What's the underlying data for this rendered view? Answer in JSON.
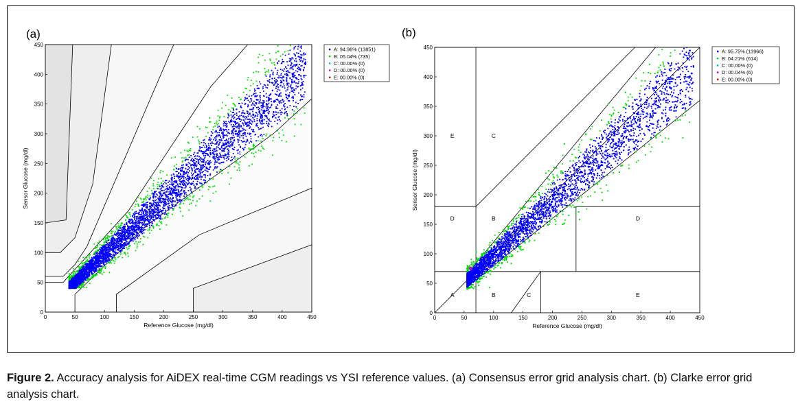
{
  "figure": {
    "label": "Figure 2.",
    "caption": "Accuracy analysis for AiDEX real-time CGM readings vs YSI reference values. (a) Consensus error grid analysis chart. (b) Clarke error grid analysis chart."
  },
  "colors": {
    "zone_a": "#0000ff",
    "zone_b": "#00dd00",
    "zone_c": "#00bbbb",
    "zone_d": "#cc00cc",
    "zone_e": "#dd0000",
    "region_light": "#f7f7f7",
    "region_mid": "#eeeeee",
    "region_dark": "#e3e3e3"
  },
  "chart_data": [
    {
      "panel_label": "(a)",
      "type": "scatter",
      "grid_type": "Consensus error grid",
      "xlabel": "Reference Glucose (mg/dl)",
      "ylabel": "Sensor Glucose (mg/dl)",
      "xlim": [
        0,
        450
      ],
      "ylim": [
        0,
        450
      ],
      "xticks": [
        0,
        50,
        100,
        150,
        200,
        250,
        300,
        350,
        400,
        450
      ],
      "yticks": [
        0,
        50,
        100,
        150,
        200,
        250,
        300,
        350,
        400,
        450
      ],
      "legend_position": "top-right outside",
      "legend": [
        {
          "zone": "A",
          "text": "A: 94.96% (13851)",
          "percent": 94.96,
          "count": 13851
        },
        {
          "zone": "B",
          "text": "B: 05.04% (735)",
          "percent": 5.04,
          "count": 735
        },
        {
          "zone": "C",
          "text": "C: 00.00% (0)",
          "percent": 0.0,
          "count": 0
        },
        {
          "zone": "D",
          "text": "D: 00.00% (0)",
          "percent": 0.0,
          "count": 0
        },
        {
          "zone": "E",
          "text": "E: 00.00% (0)",
          "percent": 0.0,
          "count": 0
        }
      ],
      "zone_boundaries": [
        [
          [
            0,
            150
          ],
          [
            35,
            155
          ],
          [
            50,
            550
          ]
        ],
        [
          [
            0,
            100
          ],
          [
            25,
            100
          ],
          [
            50,
            125
          ],
          [
            80,
            215
          ],
          [
            125,
            550
          ]
        ],
        [
          [
            0,
            60
          ],
          [
            30,
            60
          ],
          [
            50,
            80
          ],
          [
            70,
            110
          ],
          [
            260,
            550
          ]
        ],
        [
          [
            0,
            50
          ],
          [
            30,
            50
          ],
          [
            140,
            170
          ],
          [
            280,
            380
          ],
          [
            430,
            550
          ]
        ],
        [
          [
            50,
            0
          ],
          [
            50,
            30
          ],
          [
            170,
            145
          ],
          [
            385,
            300
          ],
          [
            550,
            450
          ]
        ],
        [
          [
            120,
            0
          ],
          [
            120,
            30
          ],
          [
            260,
            130
          ],
          [
            550,
            250
          ]
        ],
        [
          [
            250,
            0
          ],
          [
            250,
            40
          ],
          [
            550,
            150
          ]
        ]
      ],
      "scatter_trend": {
        "x_range": [
          40,
          440
        ],
        "slope": 0.93,
        "intercept": 4
      }
    },
    {
      "panel_label": "(b)",
      "type": "scatter",
      "grid_type": "Clarke error grid",
      "xlabel": "Reference Glucose (mg/dl)",
      "ylabel": "Sensor Glucose (mg/dl)",
      "xlim": [
        0,
        450
      ],
      "ylim": [
        0,
        450
      ],
      "xticks": [
        0,
        50,
        100,
        150,
        200,
        250,
        300,
        350,
        400,
        450
      ],
      "yticks": [
        0,
        50,
        100,
        150,
        200,
        250,
        300,
        350,
        400,
        450
      ],
      "legend_position": "top-right outside",
      "legend": [
        {
          "zone": "A",
          "text": "A: 95.75% (13966)",
          "percent": 95.75,
          "count": 13966
        },
        {
          "zone": "B",
          "text": "B: 04.21% (614)",
          "percent": 4.21,
          "count": 614
        },
        {
          "zone": "C",
          "text": "C: 00.00% (0)",
          "percent": 0.0,
          "count": 0
        },
        {
          "zone": "D",
          "text": "D: 00.04% (6)",
          "percent": 0.04,
          "count": 6
        },
        {
          "zone": "E",
          "text": "E: 00.00% (0)",
          "percent": 0.0,
          "count": 0
        }
      ],
      "zone_labels": [
        {
          "text": "E",
          "x": 30,
          "y": 300
        },
        {
          "text": "C",
          "x": 100,
          "y": 300
        },
        {
          "text": "D",
          "x": 30,
          "y": 160
        },
        {
          "text": "B",
          "x": 100,
          "y": 160
        },
        {
          "text": "D",
          "x": 345,
          "y": 160
        },
        {
          "text": "A",
          "x": 30,
          "y": 30
        },
        {
          "text": "B",
          "x": 100,
          "y": 30
        },
        {
          "text": "C",
          "x": 160,
          "y": 30
        },
        {
          "text": "E",
          "x": 345,
          "y": 30
        }
      ],
      "zone_boundaries": [
        [
          [
            0,
            0
          ],
          [
            450,
            450
          ]
        ],
        [
          [
            70,
            0
          ],
          [
            70,
            56
          ]
        ],
        [
          [
            70,
            70
          ],
          [
            70,
            450
          ]
        ],
        [
          [
            0,
            180
          ],
          [
            70,
            180
          ]
        ],
        [
          [
            0,
            70
          ],
          [
            58.33,
            70
          ]
        ],
        [
          [
            70,
            84
          ],
          [
            390,
            468
          ]
        ],
        [
          [
            70,
            180
          ],
          [
            340,
            450
          ]
        ],
        [
          [
            58.33,
            70
          ],
          [
            450,
            70
          ]
        ],
        [
          [
            70,
            56
          ],
          [
            450,
            360
          ]
        ],
        [
          [
            240,
            70
          ],
          [
            240,
            180
          ]
        ],
        [
          [
            240,
            180
          ],
          [
            450,
            180
          ]
        ],
        [
          [
            130,
            0
          ],
          [
            180,
            70
          ]
        ],
        [
          [
            180,
            0
          ],
          [
            180,
            70
          ]
        ]
      ],
      "scatter_trend": {
        "x_range": [
          55,
          440
        ],
        "slope": 0.93,
        "intercept": 4
      }
    }
  ]
}
